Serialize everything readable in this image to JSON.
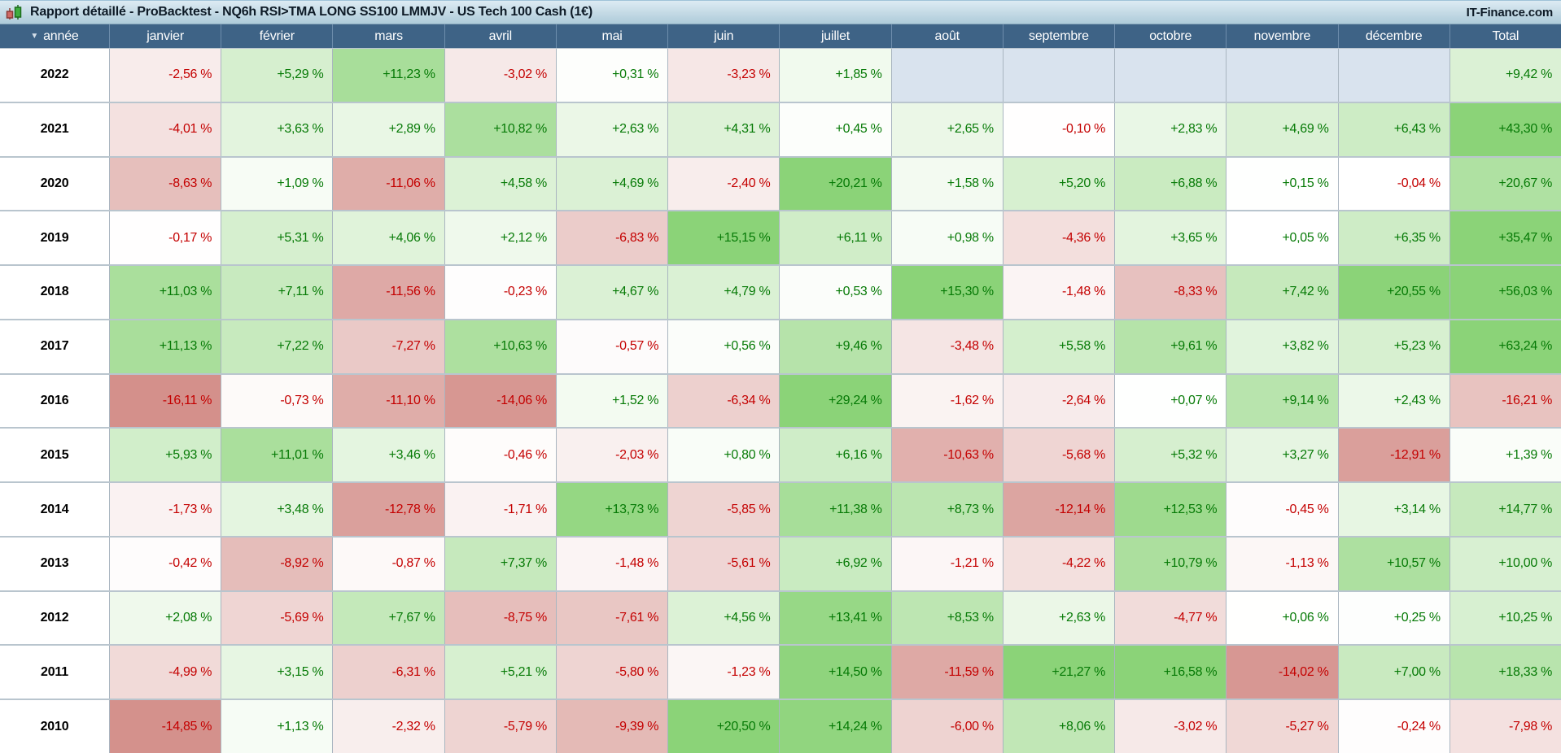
{
  "title_bar": {
    "icon": "candlestick-chart-icon",
    "title": "Rapport détaillé - ProBacktest - NQ6h RSI>TMA LONG SS100 LMMJV - US Tech 100 Cash (1€)",
    "right_text": "IT-Finance.com"
  },
  "table": {
    "sort_icon": "▼",
    "columns": [
      "année",
      "janvier",
      "février",
      "mars",
      "avril",
      "mai",
      "juin",
      "juillet",
      "août",
      "septembre",
      "octobre",
      "novembre",
      "décembre",
      "Total"
    ],
    "rows": [
      {
        "year": "2022",
        "values": [
          "-2,56 %",
          "+5,29 %",
          "+11,23 %",
          "-3,02 %",
          "+0,31 %",
          "-3,23 %",
          "+1,85 %",
          null,
          null,
          null,
          null,
          null,
          "+9,42 %"
        ]
      },
      {
        "year": "2021",
        "values": [
          "-4,01 %",
          "+3,63 %",
          "+2,89 %",
          "+10,82 %",
          "+2,63 %",
          "+4,31 %",
          "+0,45 %",
          "+2,65 %",
          "-0,10 %",
          "+2,83 %",
          "+4,69 %",
          "+6,43 %",
          "+43,30 %"
        ]
      },
      {
        "year": "2020",
        "values": [
          "-8,63 %",
          "+1,09 %",
          "-11,06 %",
          "+4,58 %",
          "+4,69 %",
          "-2,40 %",
          "+20,21 %",
          "+1,58 %",
          "+5,20 %",
          "+6,88 %",
          "+0,15 %",
          "-0,04 %",
          "+20,67 %"
        ]
      },
      {
        "year": "2019",
        "values": [
          "-0,17 %",
          "+5,31 %",
          "+4,06 %",
          "+2,12 %",
          "-6,83 %",
          "+15,15 %",
          "+6,11 %",
          "+0,98 %",
          "-4,36 %",
          "+3,65 %",
          "+0,05 %",
          "+6,35 %",
          "+35,47 %"
        ]
      },
      {
        "year": "2018",
        "values": [
          "+11,03 %",
          "+7,11 %",
          "-11,56 %",
          "-0,23 %",
          "+4,67 %",
          "+4,79 %",
          "+0,53 %",
          "+15,30 %",
          "-1,48 %",
          "-8,33 %",
          "+7,42 %",
          "+20,55 %",
          "+56,03 %"
        ]
      },
      {
        "year": "2017",
        "values": [
          "+11,13 %",
          "+7,22 %",
          "-7,27 %",
          "+10,63 %",
          "-0,57 %",
          "+0,56 %",
          "+9,46 %",
          "-3,48 %",
          "+5,58 %",
          "+9,61 %",
          "+3,82 %",
          "+5,23 %",
          "+63,24 %"
        ]
      },
      {
        "year": "2016",
        "values": [
          "-16,11 %",
          "-0,73 %",
          "-11,10 %",
          "-14,06 %",
          "+1,52 %",
          "-6,34 %",
          "+29,24 %",
          "-1,62 %",
          "-2,64 %",
          "+0,07 %",
          "+9,14 %",
          "+2,43 %",
          "-16,21 %"
        ]
      },
      {
        "year": "2015",
        "values": [
          "+5,93 %",
          "+11,01 %",
          "+3,46 %",
          "-0,46 %",
          "-2,03 %",
          "+0,80 %",
          "+6,16 %",
          "-10,63 %",
          "-5,68 %",
          "+5,32 %",
          "+3,27 %",
          "-12,91 %",
          "+1,39 %"
        ]
      },
      {
        "year": "2014",
        "values": [
          "-1,73 %",
          "+3,48 %",
          "-12,78 %",
          "-1,71 %",
          "+13,73 %",
          "-5,85 %",
          "+11,38 %",
          "+8,73 %",
          "-12,14 %",
          "+12,53 %",
          "-0,45 %",
          "+3,14 %",
          "+14,77 %"
        ]
      },
      {
        "year": "2013",
        "values": [
          "-0,42 %",
          "-8,92 %",
          "-0,87 %",
          "+7,37 %",
          "-1,48 %",
          "-5,61 %",
          "+6,92 %",
          "-1,21 %",
          "-4,22 %",
          "+10,79 %",
          "-1,13 %",
          "+10,57 %",
          "+10,00 %"
        ]
      },
      {
        "year": "2012",
        "values": [
          "+2,08 %",
          "-5,69 %",
          "+7,67 %",
          "-8,75 %",
          "-7,61 %",
          "+4,56 %",
          "+13,41 %",
          "+8,53 %",
          "+2,63 %",
          "-4,77 %",
          "+0,06 %",
          "+0,25 %",
          "+10,25 %"
        ]
      },
      {
        "year": "2011",
        "values": [
          "-4,99 %",
          "+3,15 %",
          "-6,31 %",
          "+5,21 %",
          "-5,80 %",
          "-1,23 %",
          "+14,50 %",
          "-11,59 %",
          "+21,27 %",
          "+16,58 %",
          "-14,02 %",
          "+7,00 %",
          "+18,33 %"
        ]
      },
      {
        "year": "2010",
        "values": [
          "-14,85 %",
          "+1,13 %",
          "-2,32 %",
          "-5,79 %",
          "-9,39 %",
          "+20,50 %",
          "+14,24 %",
          "-6,00 %",
          "+8,06 %",
          "-3,02 %",
          "-5,27 %",
          "-0,24 %",
          "-7,98 %"
        ]
      }
    ]
  },
  "colors": {
    "header_bg": "#3e6386",
    "header_text": "#ffffff",
    "titlebar_grad_top": "#ddebf3",
    "titlebar_grad_bottom": "#aecbd9",
    "title_text": "#0d1a26",
    "year_text": "#000000",
    "positive_text": "#067a06",
    "negative_text": "#c40000",
    "positive_strong": "#8bd378",
    "negative_strong": "#d4908b",
    "empty_cell": "#d9e3ee",
    "candle_red": "#cf6a66",
    "candle_red_border": "#8a3a36",
    "candle_green": "#3fae3f",
    "candle_green_border": "#1c6b1c"
  },
  "heatmap_scale": {
    "month_cap": 15,
    "total_cap": 30
  }
}
